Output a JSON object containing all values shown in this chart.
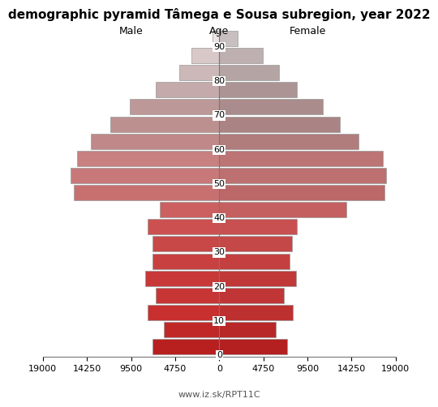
{
  "title": "demographic pyramid Tâmega e Sousa subregion, year 2022",
  "xlabel_left": "Male",
  "xlabel_center": "Age",
  "xlabel_right": "Female",
  "footer": "www.iz.sk/RPT11C",
  "age_labels": [
    0,
    10,
    20,
    30,
    40,
    50,
    60,
    70,
    80,
    90
  ],
  "age_groups": [
    0,
    5,
    10,
    15,
    20,
    25,
    30,
    35,
    40,
    45,
    50,
    55,
    60,
    65,
    70,
    75,
    80,
    85,
    90
  ],
  "male_values": [
    7200,
    6000,
    7700,
    6800,
    8000,
    7200,
    7200,
    7700,
    6400,
    15700,
    16000,
    15300,
    13800,
    11700,
    9600,
    6800,
    4300,
    3000,
    700
  ],
  "female_values": [
    7300,
    6100,
    7900,
    7000,
    8300,
    7600,
    7800,
    8400,
    13700,
    17800,
    18000,
    17600,
    15000,
    13000,
    11200,
    8400,
    6400,
    4700,
    2000
  ],
  "colors_male": [
    "#c0312a",
    "#c83830",
    "#cd3d30",
    "#cc3c30",
    "#c83835",
    "#c83835",
    "#c84040",
    "#c84040",
    "#cd5050",
    "#c88080",
    "#c88080",
    "#c88080",
    "#c08080",
    "#c09090",
    "#c09898",
    "#c0a0a0",
    "#c0b0b0",
    "#d0c0c0",
    "#e8e0e0"
  ],
  "colors_female": [
    "#c03028",
    "#c83830",
    "#c83830",
    "#c83830",
    "#c83830",
    "#c83830",
    "#c84040",
    "#c84040",
    "#c88080",
    "#c88080",
    "#c88080",
    "#c88080",
    "#c08080",
    "#c09090",
    "#c09898",
    "#c0a0a0",
    "#b0a0a0",
    "#b8b0b0",
    "#c0b8b8"
  ],
  "xlim": 19000,
  "bar_height": 4.5,
  "background_color": "#ffffff",
  "edgecolor": "#999999",
  "title_fontsize": 11,
  "axis_fontsize": 8,
  "label_fontsize": 9
}
